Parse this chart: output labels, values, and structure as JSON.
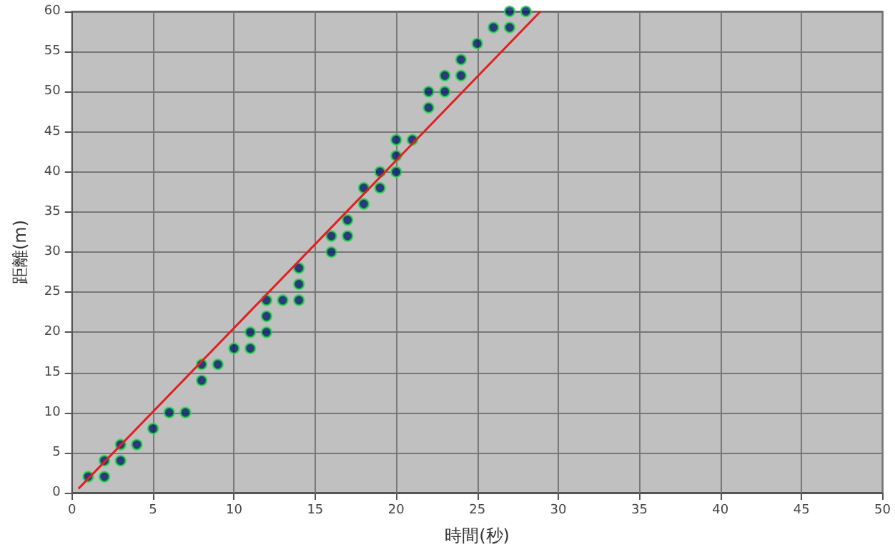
{
  "chart_data": {
    "type": "scatter",
    "xlabel": "時間(秒)",
    "ylabel": "距離(m)",
    "xlim": [
      0,
      50
    ],
    "xticks": [
      0,
      5,
      10,
      15,
      20,
      25,
      30,
      35,
      40,
      45,
      50
    ],
    "ylim": [
      0,
      60
    ],
    "yticks": [
      0,
      5,
      10,
      15,
      20,
      25,
      30,
      35,
      40,
      45,
      50,
      55,
      60
    ],
    "grid": true,
    "marker": "circle",
    "series": [
      {
        "type": "line",
        "color": "#e02020",
        "x": [
          0.4,
          28.9
        ],
        "values": [
          0.5,
          60
        ],
        "marker": "none"
      },
      {
        "color": "#001a66",
        "x": [
          1,
          2,
          2,
          3,
          3,
          4,
          5,
          6,
          7,
          8,
          8,
          9,
          10,
          11,
          11,
          12,
          12,
          12,
          13,
          14,
          14,
          14,
          16,
          16,
          17,
          17,
          18,
          18,
          19,
          19,
          20,
          20,
          20,
          21,
          22,
          22,
          23,
          23,
          24,
          24,
          25,
          26,
          27,
          27,
          28
        ],
        "values": [
          2,
          2,
          4,
          4,
          6,
          6,
          8,
          10,
          10,
          14,
          16,
          16,
          18,
          18,
          20,
          20,
          22,
          24,
          24,
          24,
          26,
          28,
          30,
          32,
          32,
          34,
          36,
          38,
          38,
          40,
          40,
          42,
          44,
          44,
          48,
          50,
          50,
          52,
          52,
          54,
          56,
          58,
          58,
          60,
          60
        ]
      }
    ]
  }
}
